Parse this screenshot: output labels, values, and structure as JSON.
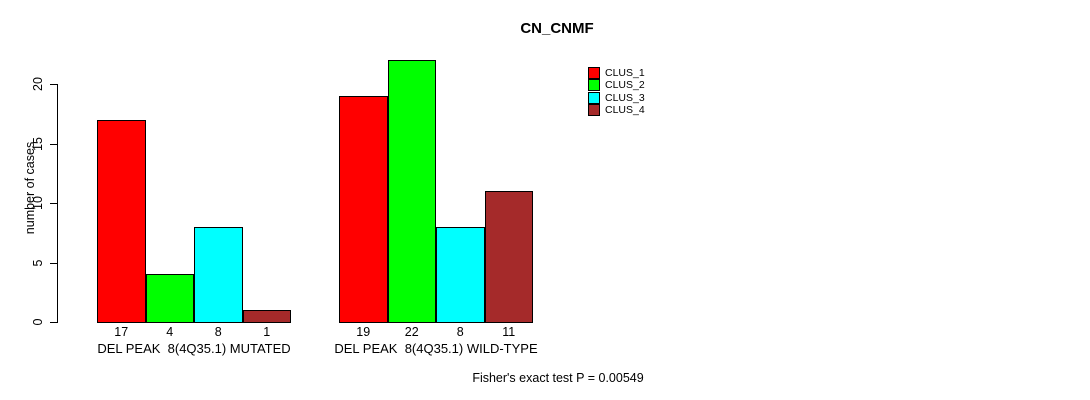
{
  "chart_data": {
    "type": "bar",
    "title": "CN_CNMF",
    "ylabel": "number of cases",
    "xlabel": "",
    "categories": [
      "DEL PEAK  8(4Q35.1) MUTATED",
      "DEL PEAK  8(4Q35.1) WILD-TYPE"
    ],
    "series": [
      {
        "name": "CLUS_1",
        "color": "#FF0000",
        "values": [
          17,
          19
        ]
      },
      {
        "name": "CLUS_2",
        "color": "#00FF00",
        "values": [
          4,
          22
        ]
      },
      {
        "name": "CLUS_3",
        "color": "#00FFFF",
        "values": [
          8,
          8
        ]
      },
      {
        "name": "CLUS_4",
        "color": "#A52A2A",
        "values": [
          1,
          11
        ]
      }
    ],
    "yticks": [
      0,
      5,
      10,
      15,
      20
    ],
    "ylim": [
      0,
      22
    ],
    "grid": false,
    "legend_position": "right-top",
    "bar_border_color": "#000000",
    "value_labels_shown": true,
    "annotation": "Fisher's exact test P = 0.00549"
  }
}
